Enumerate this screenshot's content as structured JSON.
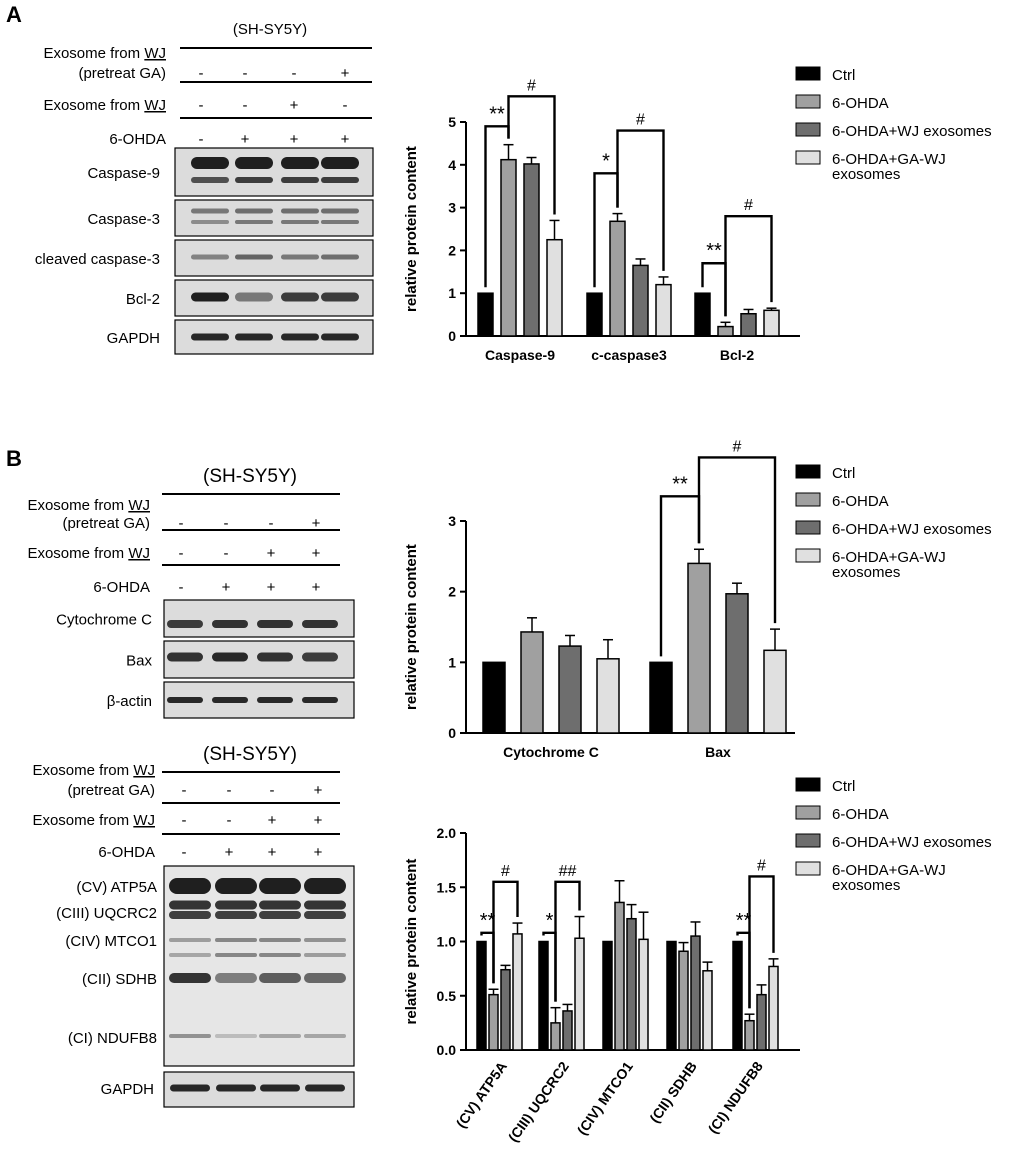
{
  "panel_labels": [
    "A",
    "B"
  ],
  "colors": {
    "ctrl": "#000000",
    "ohda": "#a0a0a0",
    "wj": "#6e6e6e",
    "gawj": "#e0e0e0",
    "blot_bg": "#dcdcdc",
    "band": "#141414"
  },
  "legend": [
    "Ctrl",
    "6-OHDA",
    "6-OHDA+WJ exosomes",
    "6-OHDA+GA-WJ",
    "exosomes"
  ],
  "blots": {
    "a": {
      "cell": "(SH-SY5Y)",
      "rows": [
        {
          "label": "Exosome from ",
          "u": "WJ",
          "label2": "(pretreat GA)",
          "signs": [
            "-",
            "-",
            "-",
            "+"
          ]
        },
        {
          "label": "Exosome from ",
          "u": "WJ",
          "label2": "",
          "signs": [
            "-",
            "-",
            "+",
            "-"
          ]
        },
        {
          "label": "6-OHDA",
          "u": "",
          "label2": "",
          "signs": [
            "-",
            "+",
            "+",
            "+"
          ]
        }
      ],
      "proteins": [
        "Caspase-9",
        "Caspase-3",
        "cleaved caspase-3",
        "Bcl-2",
        "GAPDH"
      ]
    },
    "b1": {
      "cell": "(SH-SY5Y)",
      "rows": [
        {
          "label": "Exosome from ",
          "u": "WJ",
          "label2": "(pretreat GA)",
          "signs": [
            "-",
            "-",
            "-",
            "+"
          ]
        },
        {
          "label": "Exosome from ",
          "u": "WJ",
          "label2": "",
          "signs": [
            "-",
            "-",
            "+",
            "+"
          ]
        },
        {
          "label": "6-OHDA",
          "u": "",
          "label2": "",
          "signs": [
            "-",
            "+",
            "+",
            "+"
          ]
        }
      ],
      "proteins": [
        "Cytochrome C",
        "Bax",
        "β-actin"
      ]
    },
    "b2": {
      "cell": "(SH-SY5Y)",
      "rows": [
        {
          "label": "Exosome from ",
          "u": "WJ",
          "label2": "(pretreat GA)",
          "signs": [
            "-",
            "-",
            "-",
            "+"
          ]
        },
        {
          "label": "Exosome from ",
          "u": "WJ",
          "label2": "",
          "signs": [
            "-",
            "-",
            "+",
            "+"
          ]
        },
        {
          "label": "6-OHDA",
          "u": "",
          "label2": "",
          "signs": [
            "-",
            "+",
            "+",
            "+"
          ]
        }
      ],
      "proteins": [
        "(CV) ATP5A",
        "(CIII)  UQCRC2",
        "(CIV)  MTCO1",
        "(CII)  SDHB",
        "(CI)  NDUFB8",
        "GAPDH"
      ]
    }
  },
  "chart_data": [
    {
      "type": "bar",
      "ylabel": "relative protein content",
      "ylim": [
        0,
        5
      ],
      "yticks": [
        "0",
        "1",
        "2",
        "3",
        "4",
        "5"
      ],
      "categories": [
        "Caspase-9",
        "c-caspase3",
        "Bcl-2"
      ],
      "series": [
        {
          "name": "Ctrl",
          "values": [
            1.0,
            1.0,
            1.0
          ],
          "errors": [
            0,
            0,
            0
          ]
        },
        {
          "name": "6-OHDA",
          "values": [
            4.12,
            2.68,
            0.22
          ],
          "errors": [
            0.35,
            0.18,
            0.1
          ]
        },
        {
          "name": "6-OHDA+WJ exosomes",
          "values": [
            4.02,
            1.65,
            0.52
          ],
          "errors": [
            0.15,
            0.15,
            0.1
          ]
        },
        {
          "name": "6-OHDA+GA-WJ exosomes",
          "values": [
            2.25,
            1.2,
            0.6
          ],
          "errors": [
            0.45,
            0.18,
            0.05
          ]
        }
      ],
      "significance": [
        "**",
        "#",
        "*",
        "#",
        "**",
        "#"
      ]
    },
    {
      "type": "bar",
      "ylabel": "relative protein content",
      "ylim": [
        0,
        3
      ],
      "yticks": [
        "0",
        "1",
        "2",
        "3"
      ],
      "categories": [
        "Cytochrome C",
        "Bax"
      ],
      "series": [
        {
          "name": "Ctrl",
          "values": [
            1.0,
            1.0
          ],
          "errors": [
            0,
            0
          ]
        },
        {
          "name": "6-OHDA",
          "values": [
            1.43,
            2.4
          ],
          "errors": [
            0.2,
            0.2
          ]
        },
        {
          "name": "6-OHDA+WJ exosomes",
          "values": [
            1.23,
            1.97
          ],
          "errors": [
            0.15,
            0.15
          ]
        },
        {
          "name": "6-OHDA+GA-WJ exosomes",
          "values": [
            1.05,
            1.17
          ],
          "errors": [
            0.27,
            0.3
          ]
        }
      ],
      "significance": [
        "**",
        "#"
      ]
    },
    {
      "type": "bar",
      "ylabel": "relative protein content",
      "ylim": [
        0,
        2
      ],
      "yticks": [
        "0.0",
        "0.5",
        "1.0",
        "1.5",
        "2.0"
      ],
      "categories": [
        "(CV) ATP5A",
        "(CIII) UQCRC2",
        "(CIV) MTCO1",
        "(CII) SDHB",
        "(CI) NDUFB8"
      ],
      "series": [
        {
          "name": "Ctrl",
          "values": [
            1.0,
            1.0,
            1.0,
            1.0,
            1.0
          ],
          "errors": [
            0,
            0,
            0,
            0,
            0
          ]
        },
        {
          "name": "6-OHDA",
          "values": [
            0.51,
            0.25,
            1.36,
            0.91,
            0.27
          ],
          "errors": [
            0.05,
            0.14,
            0.2,
            0.08,
            0.06
          ]
        },
        {
          "name": "6-OHDA+WJ exosomes",
          "values": [
            0.74,
            0.36,
            1.21,
            1.05,
            0.51
          ],
          "errors": [
            0.04,
            0.06,
            0.13,
            0.13,
            0.09
          ]
        },
        {
          "name": "6-OHDA+GA-WJ exosomes",
          "values": [
            1.07,
            1.03,
            1.02,
            0.73,
            0.77
          ],
          "errors": [
            0.1,
            0.2,
            0.25,
            0.08,
            0.07
          ]
        }
      ],
      "significance": [
        "**",
        "#",
        "*",
        "##",
        "**",
        "#"
      ]
    }
  ]
}
